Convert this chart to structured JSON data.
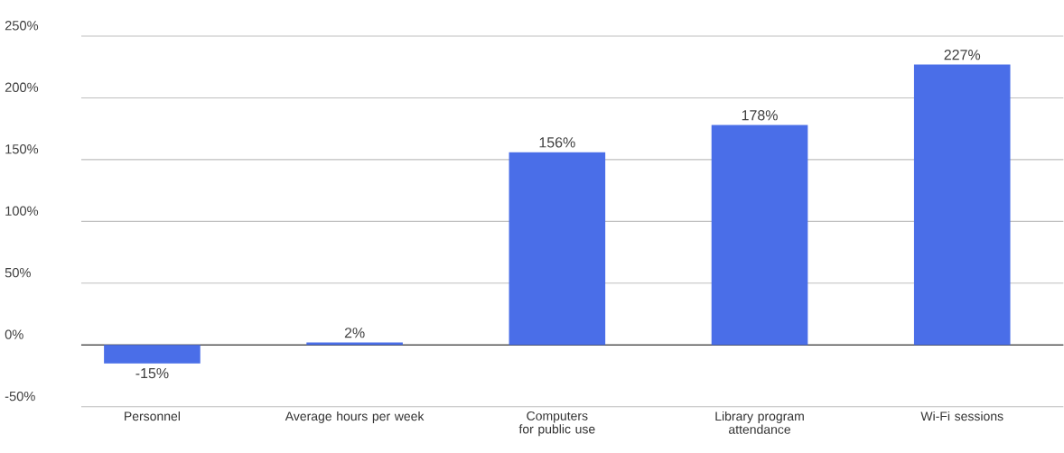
{
  "chart_data": {
    "type": "bar",
    "categories": [
      "Personnel",
      "Average hours per week",
      "Computers for public use",
      "Library program attendance",
      "Wi-Fi sessions"
    ],
    "values": [
      -15,
      2,
      156,
      178,
      227
    ],
    "value_labels": [
      "-15%",
      "2%",
      "156%",
      "178%",
      "227%"
    ],
    "color": "#4a6ee8",
    "ylim": [
      -50,
      250
    ],
    "yticks": [
      {
        "value": -50,
        "label": "-50%"
      },
      {
        "value": 0,
        "label": "0%"
      },
      {
        "value": 50,
        "label": "50%"
      },
      {
        "value": 100,
        "label": "100%"
      },
      {
        "value": 150,
        "label": "150%"
      },
      {
        "value": 200,
        "label": "200%"
      },
      {
        "value": 250,
        "label": "250%"
      }
    ],
    "grid": "y"
  }
}
